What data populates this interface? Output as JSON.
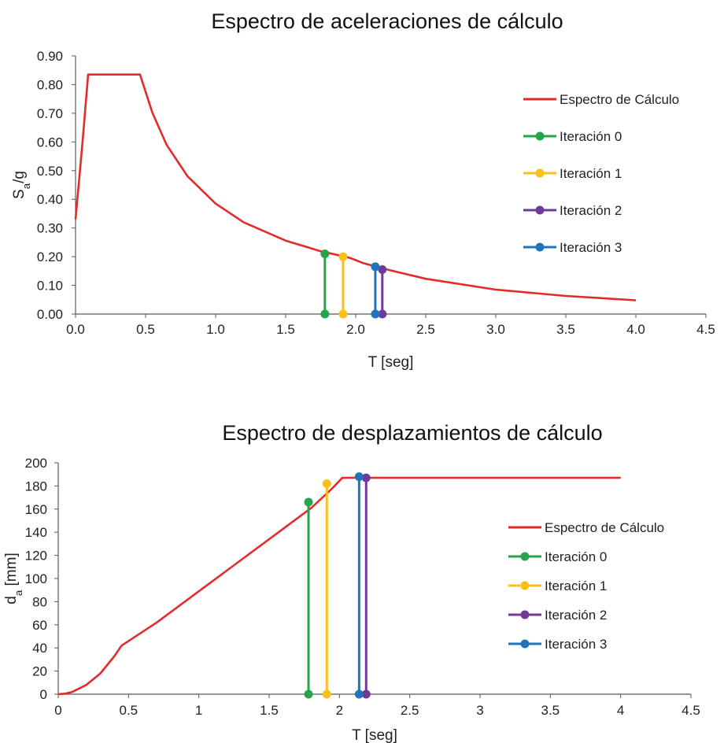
{
  "chart_data": [
    {
      "type": "line",
      "title": "Espectro de aceleraciones de cálculo",
      "xlabel": "T [seg]",
      "ylabel": "S_a/g",
      "xlim": [
        0,
        4.5
      ],
      "ylim": [
        0,
        0.9
      ],
      "x_ticks": [
        "0.0",
        "0.5",
        "1.0",
        "1.5",
        "2.0",
        "2.5",
        "3.0",
        "3.5",
        "4.0",
        "4.5"
      ],
      "y_ticks": [
        "0.00",
        "0.10",
        "0.20",
        "0.30",
        "0.40",
        "0.50",
        "0.60",
        "0.70",
        "0.80",
        "0.90"
      ],
      "grid": false,
      "legend_position": "right",
      "spectrum": {
        "name": "Espectro de Cálculo",
        "color": "#e32b2b",
        "x": [
          0.0,
          0.05,
          0.09,
          0.3,
          0.46,
          0.55,
          0.65,
          0.8,
          1.0,
          1.2,
          1.5,
          1.75,
          1.95,
          2.0,
          2.05,
          2.2,
          2.5,
          3.0,
          3.5,
          4.0
        ],
        "y": [
          0.33,
          0.6,
          0.835,
          0.835,
          0.835,
          0.7,
          0.59,
          0.48,
          0.385,
          0.32,
          0.256,
          0.219,
          0.197,
          0.188,
          0.178,
          0.158,
          0.123,
          0.085,
          0.063,
          0.048
        ]
      },
      "series": [
        {
          "name": "Iteración 0",
          "color": "#25a44a",
          "x": 1.78,
          "y": 0.21
        },
        {
          "name": "Iteración 1",
          "color": "#fbbf1a",
          "x": 1.91,
          "y": 0.2
        },
        {
          "name": "Iteración 2",
          "color": "#6f3a98",
          "x": 2.19,
          "y": 0.155
        },
        {
          "name": "Iteración 3",
          "color": "#1f74bd",
          "x": 2.14,
          "y": 0.165
        }
      ]
    },
    {
      "type": "line",
      "title": "Espectro de desplazamientos de cálculo",
      "xlabel": "T [seg]",
      "ylabel": "d_a [mm]",
      "xlim": [
        0,
        4.5
      ],
      "ylim": [
        0,
        200
      ],
      "x_ticks": [
        "0",
        "0.5",
        "1",
        "1.5",
        "2",
        "2.5",
        "3",
        "3.5",
        "4",
        "4.5"
      ],
      "y_ticks": [
        "0",
        "20",
        "40",
        "60",
        "80",
        "100",
        "120",
        "140",
        "160",
        "180",
        "200"
      ],
      "grid": false,
      "legend_position": "right",
      "spectrum": {
        "name": "Espectro de Cálculo",
        "color": "#e32b2b",
        "x": [
          0.0,
          0.05,
          0.1,
          0.2,
          0.3,
          0.4,
          0.45,
          0.7,
          1.0,
          1.3,
          1.6,
          1.8,
          1.95,
          2.02,
          2.5,
          3.0,
          3.5,
          4.0
        ],
        "y": [
          0.0,
          0.5,
          2.0,
          8.0,
          18.0,
          33.0,
          42.0,
          62.0,
          89.0,
          116.0,
          143.0,
          161.0,
          178.0,
          187.0,
          187.0,
          187.0,
          187.0,
          187.0
        ]
      },
      "series": [
        {
          "name": "Iteración 0",
          "color": "#25a44a",
          "x": 1.78,
          "y": 166
        },
        {
          "name": "Iteración 1",
          "color": "#fbbf1a",
          "x": 1.91,
          "y": 182
        },
        {
          "name": "Iteración 2",
          "color": "#6f3a98",
          "x": 2.19,
          "y": 187
        },
        {
          "name": "Iteración 3",
          "color": "#1f74bd",
          "x": 2.14,
          "y": 188
        }
      ]
    }
  ]
}
